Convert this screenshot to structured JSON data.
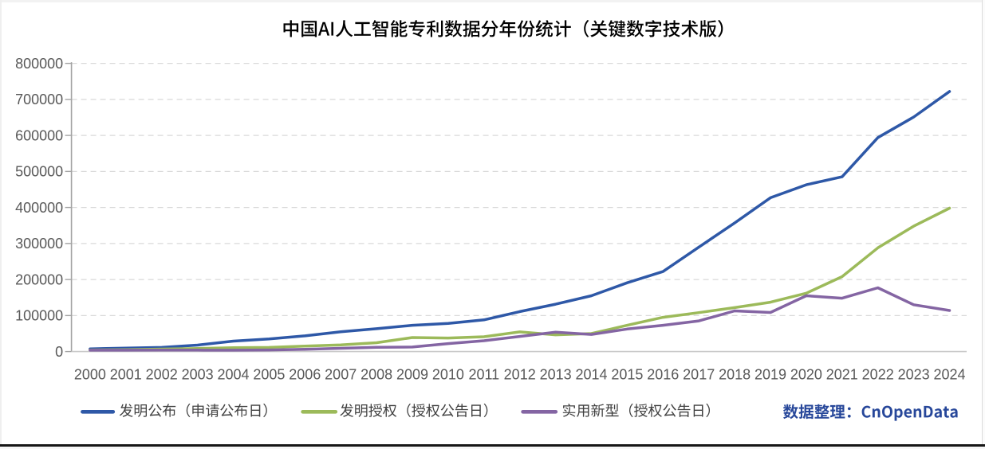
{
  "window": {
    "background": "#ffffff"
  },
  "chart": {
    "title": "中国AI人工智能专利数据分年份统计（关键数字技术版）",
    "credit": "数据整理：CnOpenData",
    "credit_color": "#27479a"
  },
  "chart_data": {
    "type": "line",
    "title": "中国AI人工智能专利数据分年份统计（关键数字技术版）",
    "xlabel": "",
    "ylabel": "",
    "categories": [
      2000,
      2001,
      2002,
      2003,
      2004,
      2005,
      2006,
      2007,
      2008,
      2009,
      2010,
      2011,
      2012,
      2013,
      2014,
      2015,
      2016,
      2017,
      2018,
      2019,
      2020,
      2021,
      2022,
      2023,
      2024
    ],
    "yticks": [
      0,
      100000,
      200000,
      300000,
      400000,
      500000,
      600000,
      700000,
      800000
    ],
    "ylim": [
      0,
      800000
    ],
    "grid": true,
    "legend_position": "bottom",
    "series": [
      {
        "name": "发明公布（申请公布日）",
        "color": "#2e58a7",
        "values": [
          7500,
          9500,
          11500,
          18000,
          29000,
          35000,
          43500,
          55000,
          63500,
          73000,
          78000,
          88000,
          111000,
          131500,
          155000,
          191000,
          222000,
          290000,
          357000,
          427000,
          463000,
          485000,
          594000,
          651000,
          722000
        ]
      },
      {
        "name": "发明授权（授权公告日）",
        "color": "#9cba5a",
        "values": [
          4500,
          5200,
          6800,
          8500,
          10500,
          11500,
          15000,
          18500,
          24500,
          39000,
          37500,
          41000,
          54500,
          46500,
          50000,
          73000,
          95000,
          108000,
          122000,
          137000,
          162000,
          208000,
          288000,
          348000,
          398000
        ]
      },
      {
        "name": "实用新型（授权公告日）",
        "color": "#8465a3",
        "values": [
          3700,
          3800,
          4000,
          4000,
          3800,
          4500,
          6200,
          9000,
          12000,
          12500,
          22000,
          30000,
          42000,
          54000,
          47500,
          62500,
          73000,
          85000,
          113000,
          108500,
          155000,
          148000,
          177000,
          130000,
          114000
        ]
      }
    ]
  }
}
